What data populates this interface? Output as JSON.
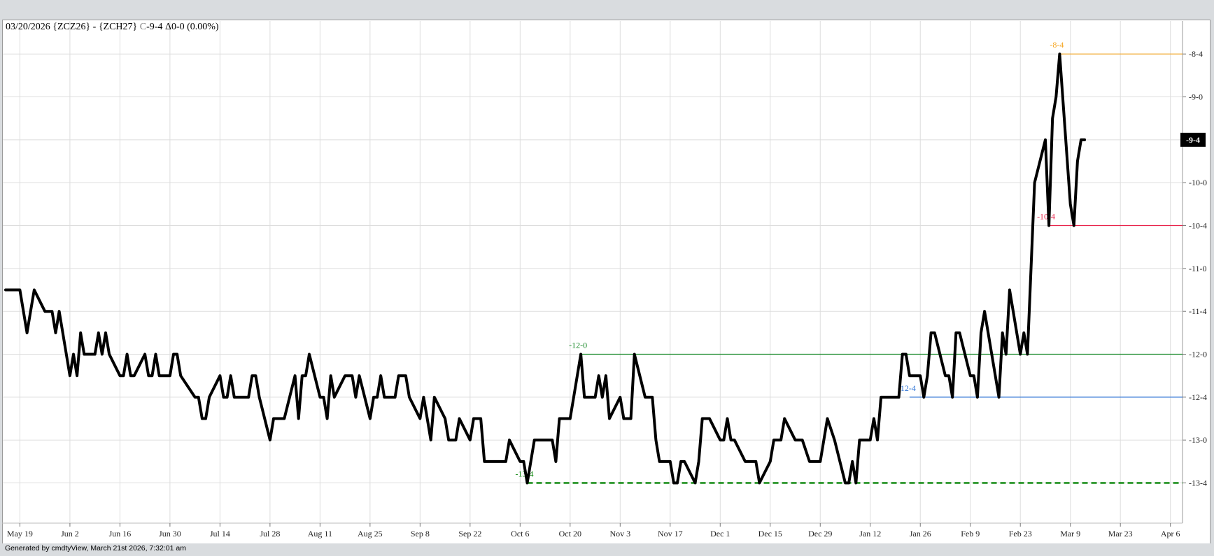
{
  "header": {
    "date": "03/20/2026",
    "spread": "{ZCZ26} - {ZCH27}",
    "close_prefix": "C",
    "close": "-9-4",
    "change": "Δ0-0 (0.00%)"
  },
  "footer": {
    "generated": "Generated by cmdtyView, March 21st 2026, 7:32:01 am"
  },
  "colors": {
    "line": "#000000",
    "grid": "#dddddd",
    "orange": "#f5a623",
    "red": "#e8234a",
    "green": "#1a8a2a",
    "blue": "#2f74d6",
    "dark_green": "#128a12"
  },
  "chart_data": {
    "type": "line",
    "x_tick_labels": [
      "May 19",
      "Jun 2",
      "Jun 16",
      "Jun 30",
      "Jul 14",
      "Jul 28",
      "Aug 11",
      "Aug 25",
      "Sep 8",
      "Sep 22",
      "Oct 6",
      "Oct 20",
      "Nov 3",
      "Nov 17",
      "Dec 1",
      "Dec 15",
      "Dec 29",
      "Jan 12",
      "Jan 26",
      "Feb 9",
      "Feb 23",
      "Mar 9",
      "Mar 23",
      "Apr 6"
    ],
    "x_tick_dates": [
      "2025-05-19",
      "2025-06-02",
      "2025-06-16",
      "2025-06-30",
      "2025-07-14",
      "2025-07-28",
      "2025-08-11",
      "2025-08-25",
      "2025-09-08",
      "2025-09-22",
      "2025-10-06",
      "2025-10-20",
      "2025-11-03",
      "2025-11-17",
      "2025-12-01",
      "2025-12-15",
      "2025-12-29",
      "2026-01-12",
      "2026-01-26",
      "2026-02-09",
      "2026-02-23",
      "2026-03-09",
      "2026-03-23",
      "2026-04-06"
    ],
    "y_tick_labels": [
      "-8-4",
      "-9-0",
      "-9-4",
      "-10-0",
      "-10-4",
      "-11-0",
      "-11-4",
      "-12-0",
      "-12-4",
      "-13-0",
      "-13-4"
    ],
    "y_tick_values": [
      -8.5,
      -9.0,
      -9.5,
      -10.0,
      -10.5,
      -11.0,
      -11.5,
      -12.0,
      -12.5,
      -13.0,
      -13.5
    ],
    "ylim": [
      -14.05,
      -8.05
    ],
    "xlim": [
      "2025-05-15",
      "2026-04-09"
    ],
    "last_value_label": "-9-4",
    "last_value": -9.5,
    "series": [
      {
        "points": [
          [
            "2025-05-15",
            -11.25
          ],
          [
            "2025-05-16",
            -11.25
          ],
          [
            "2025-05-19",
            -11.25
          ],
          [
            "2025-05-20",
            -11.5
          ],
          [
            "2025-05-21",
            -11.75
          ],
          [
            "2025-05-22",
            -11.5
          ],
          [
            "2025-05-23",
            -11.25
          ],
          [
            "2025-05-26",
            -11.5
          ],
          [
            "2025-05-27",
            -11.5
          ],
          [
            "2025-05-28",
            -11.5
          ],
          [
            "2025-05-29",
            -11.75
          ],
          [
            "2025-05-30",
            -11.5
          ],
          [
            "2025-06-02",
            -12.25
          ],
          [
            "2025-06-03",
            -12.0
          ],
          [
            "2025-06-04",
            -12.25
          ],
          [
            "2025-06-05",
            -11.75
          ],
          [
            "2025-06-06",
            -12.0
          ],
          [
            "2025-06-09",
            -12.0
          ],
          [
            "2025-06-10",
            -11.75
          ],
          [
            "2025-06-11",
            -12.0
          ],
          [
            "2025-06-12",
            -11.75
          ],
          [
            "2025-06-13",
            -12.0
          ],
          [
            "2025-06-16",
            -12.25
          ],
          [
            "2025-06-17",
            -12.25
          ],
          [
            "2025-06-18",
            -12.0
          ],
          [
            "2025-06-19",
            -12.25
          ],
          [
            "2025-06-20",
            -12.25
          ],
          [
            "2025-06-23",
            -12.0
          ],
          [
            "2025-06-24",
            -12.25
          ],
          [
            "2025-06-25",
            -12.25
          ],
          [
            "2025-06-26",
            -12.0
          ],
          [
            "2025-06-27",
            -12.25
          ],
          [
            "2025-06-30",
            -12.25
          ],
          [
            "2025-07-01",
            -12.0
          ],
          [
            "2025-07-02",
            -12.0
          ],
          [
            "2025-07-03",
            -12.25
          ],
          [
            "2025-07-07",
            -12.5
          ],
          [
            "2025-07-08",
            -12.5
          ],
          [
            "2025-07-09",
            -12.75
          ],
          [
            "2025-07-10",
            -12.75
          ],
          [
            "2025-07-11",
            -12.5
          ],
          [
            "2025-07-14",
            -12.25
          ],
          [
            "2025-07-15",
            -12.5
          ],
          [
            "2025-07-16",
            -12.5
          ],
          [
            "2025-07-17",
            -12.25
          ],
          [
            "2025-07-18",
            -12.5
          ],
          [
            "2025-07-21",
            -12.5
          ],
          [
            "2025-07-22",
            -12.5
          ],
          [
            "2025-07-23",
            -12.25
          ],
          [
            "2025-07-24",
            -12.25
          ],
          [
            "2025-07-25",
            -12.5
          ],
          [
            "2025-07-28",
            -13.0
          ],
          [
            "2025-07-29",
            -12.75
          ],
          [
            "2025-07-30",
            -12.75
          ],
          [
            "2025-07-31",
            -12.75
          ],
          [
            "2025-08-01",
            -12.75
          ],
          [
            "2025-08-04",
            -12.25
          ],
          [
            "2025-08-05",
            -12.75
          ],
          [
            "2025-08-06",
            -12.25
          ],
          [
            "2025-08-07",
            -12.25
          ],
          [
            "2025-08-08",
            -12.0
          ],
          [
            "2025-08-11",
            -12.5
          ],
          [
            "2025-08-12",
            -12.5
          ],
          [
            "2025-08-13",
            -12.75
          ],
          [
            "2025-08-14",
            -12.25
          ],
          [
            "2025-08-15",
            -12.5
          ],
          [
            "2025-08-18",
            -12.25
          ],
          [
            "2025-08-19",
            -12.25
          ],
          [
            "2025-08-20",
            -12.25
          ],
          [
            "2025-08-21",
            -12.5
          ],
          [
            "2025-08-22",
            -12.25
          ],
          [
            "2025-08-25",
            -12.75
          ],
          [
            "2025-08-26",
            -12.5
          ],
          [
            "2025-08-27",
            -12.5
          ],
          [
            "2025-08-28",
            -12.25
          ],
          [
            "2025-08-29",
            -12.5
          ],
          [
            "2025-09-01",
            -12.5
          ],
          [
            "2025-09-02",
            -12.25
          ],
          [
            "2025-09-03",
            -12.25
          ],
          [
            "2025-09-04",
            -12.25
          ],
          [
            "2025-09-05",
            -12.5
          ],
          [
            "2025-09-08",
            -12.75
          ],
          [
            "2025-09-09",
            -12.5
          ],
          [
            "2025-09-10",
            -12.75
          ],
          [
            "2025-09-11",
            -13.0
          ],
          [
            "2025-09-12",
            -12.5
          ],
          [
            "2025-09-15",
            -12.75
          ],
          [
            "2025-09-16",
            -13.0
          ],
          [
            "2025-09-17",
            -13.0
          ],
          [
            "2025-09-18",
            -13.0
          ],
          [
            "2025-09-19",
            -12.75
          ],
          [
            "2025-09-22",
            -13.0
          ],
          [
            "2025-09-23",
            -12.75
          ],
          [
            "2025-09-24",
            -12.75
          ],
          [
            "2025-09-25",
            -12.75
          ],
          [
            "2025-09-26",
            -13.25
          ],
          [
            "2025-09-29",
            -13.25
          ],
          [
            "2025-09-30",
            -13.25
          ],
          [
            "2025-10-01",
            -13.25
          ],
          [
            "2025-10-02",
            -13.25
          ],
          [
            "2025-10-03",
            -13.0
          ],
          [
            "2025-10-06",
            -13.25
          ],
          [
            "2025-10-07",
            -13.25
          ],
          [
            "2025-10-08",
            -13.5
          ],
          [
            "2025-10-09",
            -13.25
          ],
          [
            "2025-10-10",
            -13.0
          ],
          [
            "2025-10-13",
            -13.0
          ],
          [
            "2025-10-14",
            -13.0
          ],
          [
            "2025-10-15",
            -13.0
          ],
          [
            "2025-10-16",
            -13.25
          ],
          [
            "2025-10-17",
            -12.75
          ],
          [
            "2025-10-20",
            -12.75
          ],
          [
            "2025-10-21",
            -12.5
          ],
          [
            "2025-10-22",
            -12.25
          ],
          [
            "2025-10-23",
            -12.0
          ],
          [
            "2025-10-24",
            -12.5
          ],
          [
            "2025-10-27",
            -12.5
          ],
          [
            "2025-10-28",
            -12.25
          ],
          [
            "2025-10-29",
            -12.5
          ],
          [
            "2025-10-30",
            -12.25
          ],
          [
            "2025-10-31",
            -12.75
          ],
          [
            "2025-11-03",
            -12.5
          ],
          [
            "2025-11-04",
            -12.75
          ],
          [
            "2025-11-05",
            -12.75
          ],
          [
            "2025-11-06",
            -12.75
          ],
          [
            "2025-11-07",
            -12.0
          ],
          [
            "2025-11-10",
            -12.5
          ],
          [
            "2025-11-11",
            -12.5
          ],
          [
            "2025-11-12",
            -12.5
          ],
          [
            "2025-11-13",
            -13.0
          ],
          [
            "2025-11-14",
            -13.25
          ],
          [
            "2025-11-17",
            -13.25
          ],
          [
            "2025-11-18",
            -13.5
          ],
          [
            "2025-11-19",
            -13.5
          ],
          [
            "2025-11-20",
            -13.25
          ],
          [
            "2025-11-21",
            -13.25
          ],
          [
            "2025-11-24",
            -13.5
          ],
          [
            "2025-11-25",
            -13.25
          ],
          [
            "2025-11-26",
            -12.75
          ],
          [
            "2025-11-28",
            -12.75
          ],
          [
            "2025-12-01",
            -13.0
          ],
          [
            "2025-12-02",
            -13.0
          ],
          [
            "2025-12-03",
            -12.75
          ],
          [
            "2025-12-04",
            -13.0
          ],
          [
            "2025-12-05",
            -13.0
          ],
          [
            "2025-12-08",
            -13.25
          ],
          [
            "2025-12-09",
            -13.25
          ],
          [
            "2025-12-10",
            -13.25
          ],
          [
            "2025-12-11",
            -13.25
          ],
          [
            "2025-12-12",
            -13.5
          ],
          [
            "2025-12-15",
            -13.25
          ],
          [
            "2025-12-16",
            -13.0
          ],
          [
            "2025-12-17",
            -13.0
          ],
          [
            "2025-12-18",
            -13.0
          ],
          [
            "2025-12-19",
            -12.75
          ],
          [
            "2025-12-22",
            -13.0
          ],
          [
            "2025-12-23",
            -13.0
          ],
          [
            "2025-12-24",
            -13.0
          ],
          [
            "2025-12-26",
            -13.25
          ],
          [
            "2025-12-29",
            -13.25
          ],
          [
            "2025-12-30",
            -13.0
          ],
          [
            "2025-12-31",
            -12.75
          ],
          [
            "2026-01-02",
            -13.0
          ],
          [
            "2026-01-05",
            -13.5
          ],
          [
            "2026-01-06",
            -13.5
          ],
          [
            "2026-01-07",
            -13.25
          ],
          [
            "2026-01-08",
            -13.5
          ],
          [
            "2026-01-09",
            -13.0
          ],
          [
            "2026-01-12",
            -13.0
          ],
          [
            "2026-01-13",
            -12.75
          ],
          [
            "2026-01-14",
            -13.0
          ],
          [
            "2026-01-15",
            -12.5
          ],
          [
            "2026-01-16",
            -12.5
          ],
          [
            "2026-01-20",
            -12.5
          ],
          [
            "2026-01-21",
            -12.0
          ],
          [
            "2026-01-22",
            -12.0
          ],
          [
            "2026-01-23",
            -12.25
          ],
          [
            "2026-01-26",
            -12.25
          ],
          [
            "2026-01-27",
            -12.5
          ],
          [
            "2026-01-28",
            -12.25
          ],
          [
            "2026-01-29",
            -11.75
          ],
          [
            "2026-01-30",
            -11.75
          ],
          [
            "2026-02-02",
            -12.25
          ],
          [
            "2026-02-03",
            -12.25
          ],
          [
            "2026-02-04",
            -12.5
          ],
          [
            "2026-02-05",
            -11.75
          ],
          [
            "2026-02-06",
            -11.75
          ],
          [
            "2026-02-09",
            -12.25
          ],
          [
            "2026-02-10",
            -12.25
          ],
          [
            "2026-02-11",
            -12.5
          ],
          [
            "2026-02-12",
            -11.75
          ],
          [
            "2026-02-13",
            -11.5
          ],
          [
            "2026-02-17",
            -12.5
          ],
          [
            "2026-02-18",
            -11.75
          ],
          [
            "2026-02-19",
            -12.0
          ],
          [
            "2026-02-20",
            -11.25
          ],
          [
            "2026-02-23",
            -12.0
          ],
          [
            "2026-02-24",
            -11.75
          ],
          [
            "2026-02-25",
            -12.0
          ],
          [
            "2026-02-26",
            -11.0
          ],
          [
            "2026-02-27",
            -10.0
          ],
          [
            "2026-03-02",
            -9.5
          ],
          [
            "2026-03-03",
            -10.5
          ],
          [
            "2026-03-04",
            -9.25
          ],
          [
            "2026-03-05",
            -9.0
          ],
          [
            "2026-03-06",
            -8.5
          ],
          [
            "2026-03-09",
            -10.25
          ],
          [
            "2026-03-10",
            -10.5
          ],
          [
            "2026-03-11",
            -9.75
          ],
          [
            "2026-03-12",
            -9.5
          ],
          [
            "2026-03-13",
            -9.5
          ]
        ]
      }
    ],
    "levels": [
      {
        "label": "-8-4",
        "value": -8.5,
        "start": "2026-03-06",
        "color": "orange",
        "style": "solid"
      },
      {
        "label": "-10-4",
        "value": -10.5,
        "start": "2026-03-03",
        "color": "red",
        "style": "solid"
      },
      {
        "label": "-12-0",
        "value": -12.0,
        "start": "2025-10-23",
        "color": "green",
        "style": "solid"
      },
      {
        "label": "-12-4",
        "value": -12.5,
        "start": "2026-01-23",
        "color": "blue",
        "style": "solid"
      },
      {
        "label": "-13-4",
        "value": -13.5,
        "start": "2025-10-08",
        "color": "dark_green",
        "style": "dashed"
      }
    ],
    "grid": true
  }
}
